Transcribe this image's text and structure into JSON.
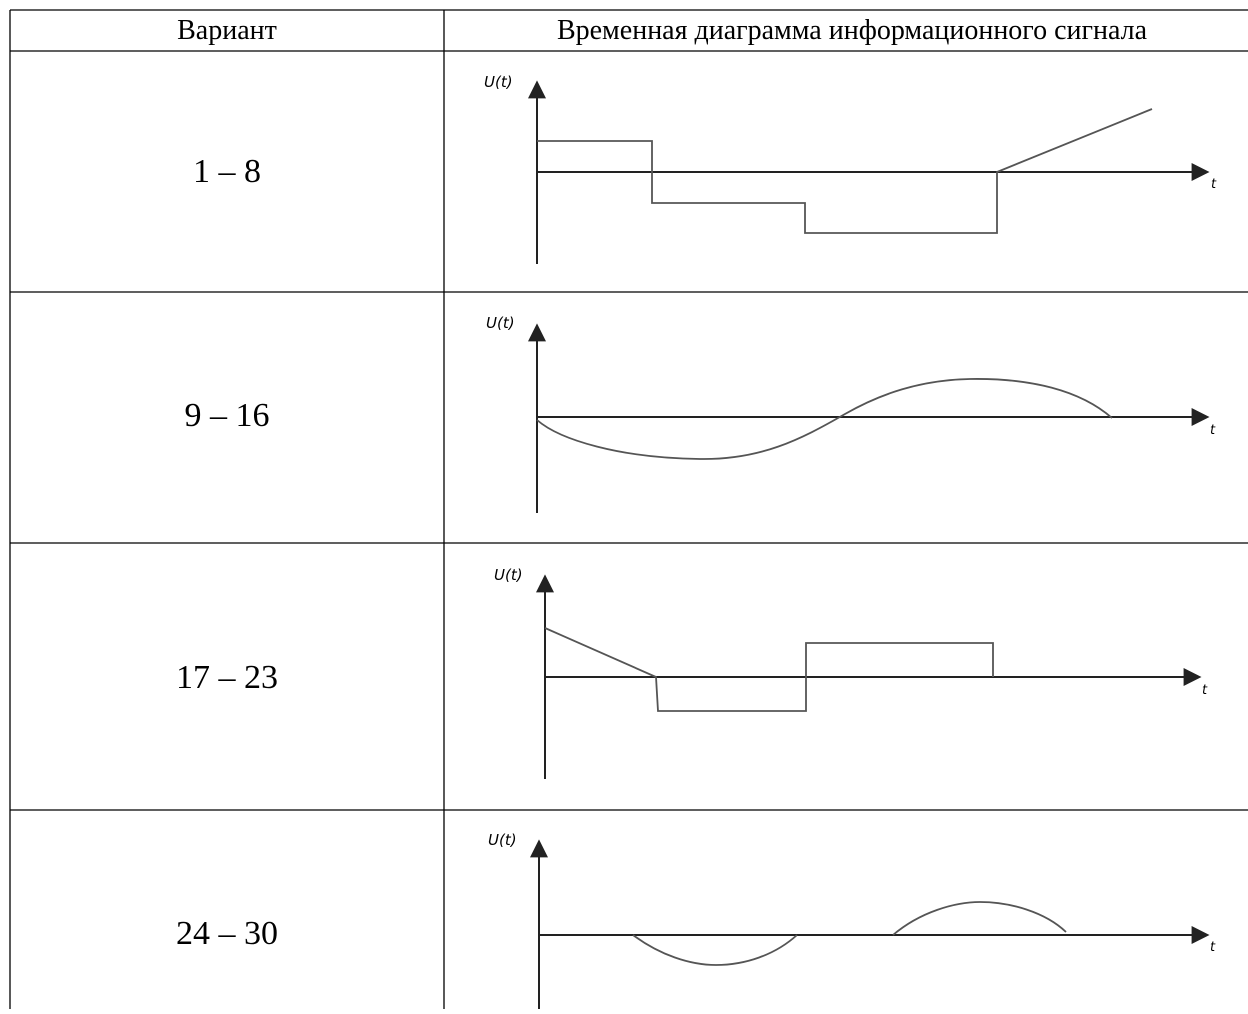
{
  "table": {
    "header": {
      "variant": "Вариант",
      "diagram": "Временная диаграмма информационного сигнала"
    },
    "rows": [
      {
        "variant": "1 – 8",
        "y_axis_label": "U(t)",
        "x_axis_label": "t",
        "signal": "steps-then-ramp"
      },
      {
        "variant": "9 – 16",
        "y_axis_label": "U(t)",
        "x_axis_label": "t",
        "signal": "negative-then-positive-wave"
      },
      {
        "variant": "17 – 23",
        "y_axis_label": "U(t)",
        "x_axis_label": "t",
        "signal": "decay-then-steps"
      },
      {
        "variant": "24 – 30",
        "y_axis_label": "U(t)",
        "x_axis_label": "t",
        "signal": "two-half-waves"
      }
    ]
  }
}
